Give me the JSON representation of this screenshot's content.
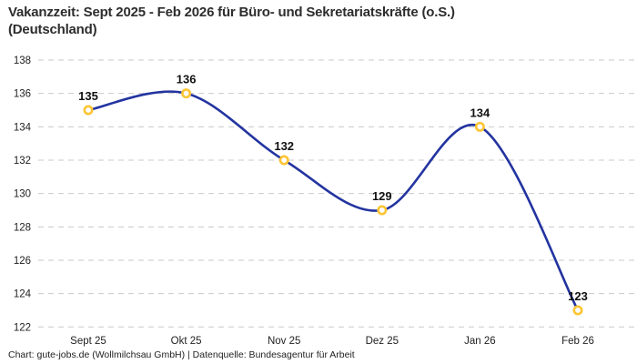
{
  "header": {
    "title_lines": [
      "Vakanzzeit: Sept 2025 - Feb 2026 für Büro- und Sekretariatskräfte (o.S.)",
      "(Deutschland)"
    ]
  },
  "footer": {
    "text": "Chart: gute-jobs.de (Wollmilchsau GmbH) | Datenquelle: Bundesagentur für Arbeit"
  },
  "chart_data": {
    "type": "line",
    "title": "Vakanzzeit: Sept 2025 - Feb 2026 für Büro- und Sekretariatskräfte (o.S.) (Deutschland)",
    "categories": [
      "Sept 25",
      "Okt 25",
      "Nov 25",
      "Dez 25",
      "Jan 26",
      "Feb 26"
    ],
    "values": [
      135,
      136,
      132,
      129,
      134,
      123
    ],
    "xlabel": "",
    "ylabel": "",
    "ylim": [
      122,
      138
    ],
    "yticks": [
      138,
      136,
      134,
      132,
      130,
      128,
      126,
      124,
      122
    ],
    "grid": "horizontal-dashed",
    "legend": "none",
    "smooth": true,
    "line_color": "#2334a0",
    "marker_color": "#fcc534",
    "marker_fill": "#ffffff",
    "grid_color": "#c9c9c9",
    "tick_color": "#222222",
    "point_label_color": "#111111"
  }
}
